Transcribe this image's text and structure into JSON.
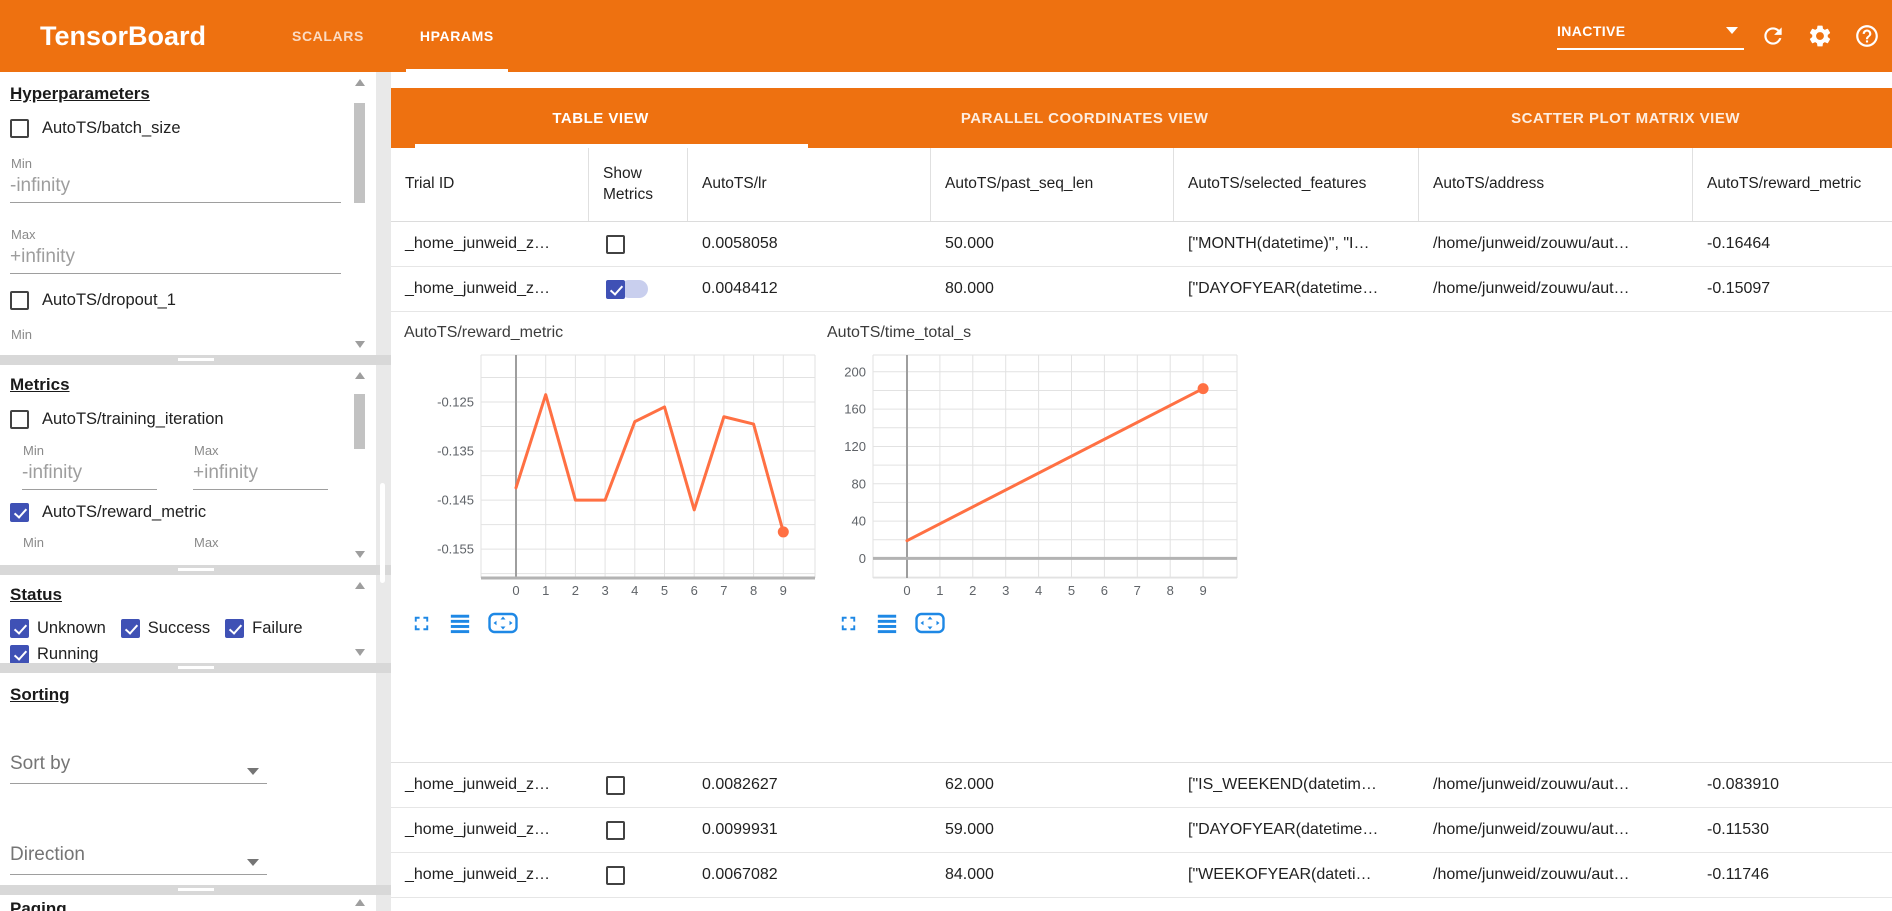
{
  "toolbar": {
    "title": "TensorBoard",
    "tabs": [
      {
        "label": "SCALARS",
        "active": false
      },
      {
        "label": "HPARAMS",
        "active": true
      }
    ],
    "run_status": "INACTIVE"
  },
  "sidebar": {
    "hyperparameters": {
      "heading": "Hyperparameters",
      "items": [
        {
          "label": "AutoTS/batch_size",
          "checked": false
        },
        {
          "label": "AutoTS/dropout_1",
          "checked": false
        }
      ],
      "min_label": "Min",
      "max_label": "Max",
      "min_value": "-infinity",
      "max_value": "+infinity"
    },
    "metrics": {
      "heading": "Metrics",
      "items": [
        {
          "label": "AutoTS/training_iteration",
          "checked": false
        },
        {
          "label": "AutoTS/reward_metric",
          "checked": true
        }
      ],
      "min_label": "Min",
      "max_label": "Max",
      "min_value": "-infinity",
      "max_value": "+infinity"
    },
    "status": {
      "heading": "Status",
      "items": [
        {
          "label": "Unknown",
          "checked": true
        },
        {
          "label": "Success",
          "checked": true
        },
        {
          "label": "Failure",
          "checked": true
        },
        {
          "label": "Running",
          "checked": true
        }
      ]
    },
    "sorting": {
      "heading": "Sorting",
      "sort_by_label": "Sort by",
      "direction_label": "Direction"
    },
    "paging": {
      "heading": "Paging"
    }
  },
  "main": {
    "view_tabs": [
      "TABLE VIEW",
      "PARALLEL COORDINATES VIEW",
      "SCATTER PLOT MATRIX VIEW"
    ],
    "table": {
      "headers": [
        "Trial ID",
        "Show Metrics",
        "AutoTS/lr",
        "AutoTS/past_seq_len",
        "AutoTS/selected_features",
        "AutoTS/address",
        "AutoTS/reward_metric"
      ],
      "rows": [
        {
          "trial_id": "_home_junweid_z…",
          "show_metrics": false,
          "lr": "0.0058058",
          "past_seq_len": "50.000",
          "selected_features": "[\"MONTH(datetime)\", \"I…",
          "address": "/home/junweid/zouwu/aut…",
          "reward_metric": "-0.16464"
        },
        {
          "trial_id": "_home_junweid_z…",
          "show_metrics": true,
          "lr": "0.0048412",
          "past_seq_len": "80.000",
          "selected_features": "[\"DAYOFYEAR(datetime…",
          "address": "/home/junweid/zouwu/aut…",
          "reward_metric": "-0.15097"
        },
        {
          "trial_id": "_home_junweid_z…",
          "show_metrics": false,
          "lr": "0.0082627",
          "past_seq_len": "62.000",
          "selected_features": "[\"IS_WEEKEND(datetim…",
          "address": "/home/junweid/zouwu/aut…",
          "reward_metric": "-0.083910"
        },
        {
          "trial_id": "_home_junweid_z…",
          "show_metrics": false,
          "lr": "0.0099931",
          "past_seq_len": "59.000",
          "selected_features": "[\"DAYOFYEAR(datetime…",
          "address": "/home/junweid/zouwu/aut…",
          "reward_metric": "-0.11530"
        },
        {
          "trial_id": "_home_junweid_z…",
          "show_metrics": false,
          "lr": "0.0067082",
          "past_seq_len": "84.000",
          "selected_features": "[\"WEEKOFYEAR(dateti…",
          "address": "/home/junweid/zouwu/aut…",
          "reward_metric": "-0.11746"
        }
      ]
    }
  },
  "chart_data": [
    {
      "type": "line",
      "title": "AutoTS/reward_metric",
      "x": [
        0,
        1,
        2,
        3,
        4,
        5,
        6,
        7,
        8,
        9
      ],
      "y": [
        -0.1425,
        -0.1235,
        -0.145,
        -0.145,
        -0.129,
        -0.126,
        -0.147,
        -0.128,
        -0.1295,
        -0.1515
      ],
      "xticks": [
        0,
        1,
        2,
        3,
        4,
        5,
        6,
        7,
        8,
        9
      ],
      "yticks": [
        -0.125,
        -0.135,
        -0.145,
        -0.155
      ],
      "ytick_labels": [
        "-0.125",
        "-0.135",
        "-0.145",
        "-0.155"
      ],
      "ylim": [
        -0.1609,
        -0.1154
      ],
      "minor_step": 0.005,
      "grid": true,
      "line_color": "#ff7043",
      "end_marker": true
    },
    {
      "type": "line",
      "title": "AutoTS/time_total_s",
      "x": [
        0,
        9
      ],
      "y": [
        19,
        182
      ],
      "xticks": [
        0,
        1,
        2,
        3,
        4,
        5,
        6,
        7,
        8,
        9
      ],
      "yticks": [
        200,
        160,
        120,
        80,
        40,
        0
      ],
      "ytick_labels": [
        "200",
        "160",
        "120",
        "80",
        "40",
        "0"
      ],
      "ylim": [
        -21,
        218
      ],
      "minor_step": 20,
      "axis_at": 0,
      "grid": true,
      "line_color": "#ff7043",
      "end_marker": true
    }
  ],
  "colors": {
    "toolbar_orange": "#ee7110",
    "checkbox_indigo": "#3f51b5",
    "chart_line_orange": "#ff7043",
    "chart_icon_blue": "#1e88e5",
    "pill_lavender": "#c9cfee"
  }
}
